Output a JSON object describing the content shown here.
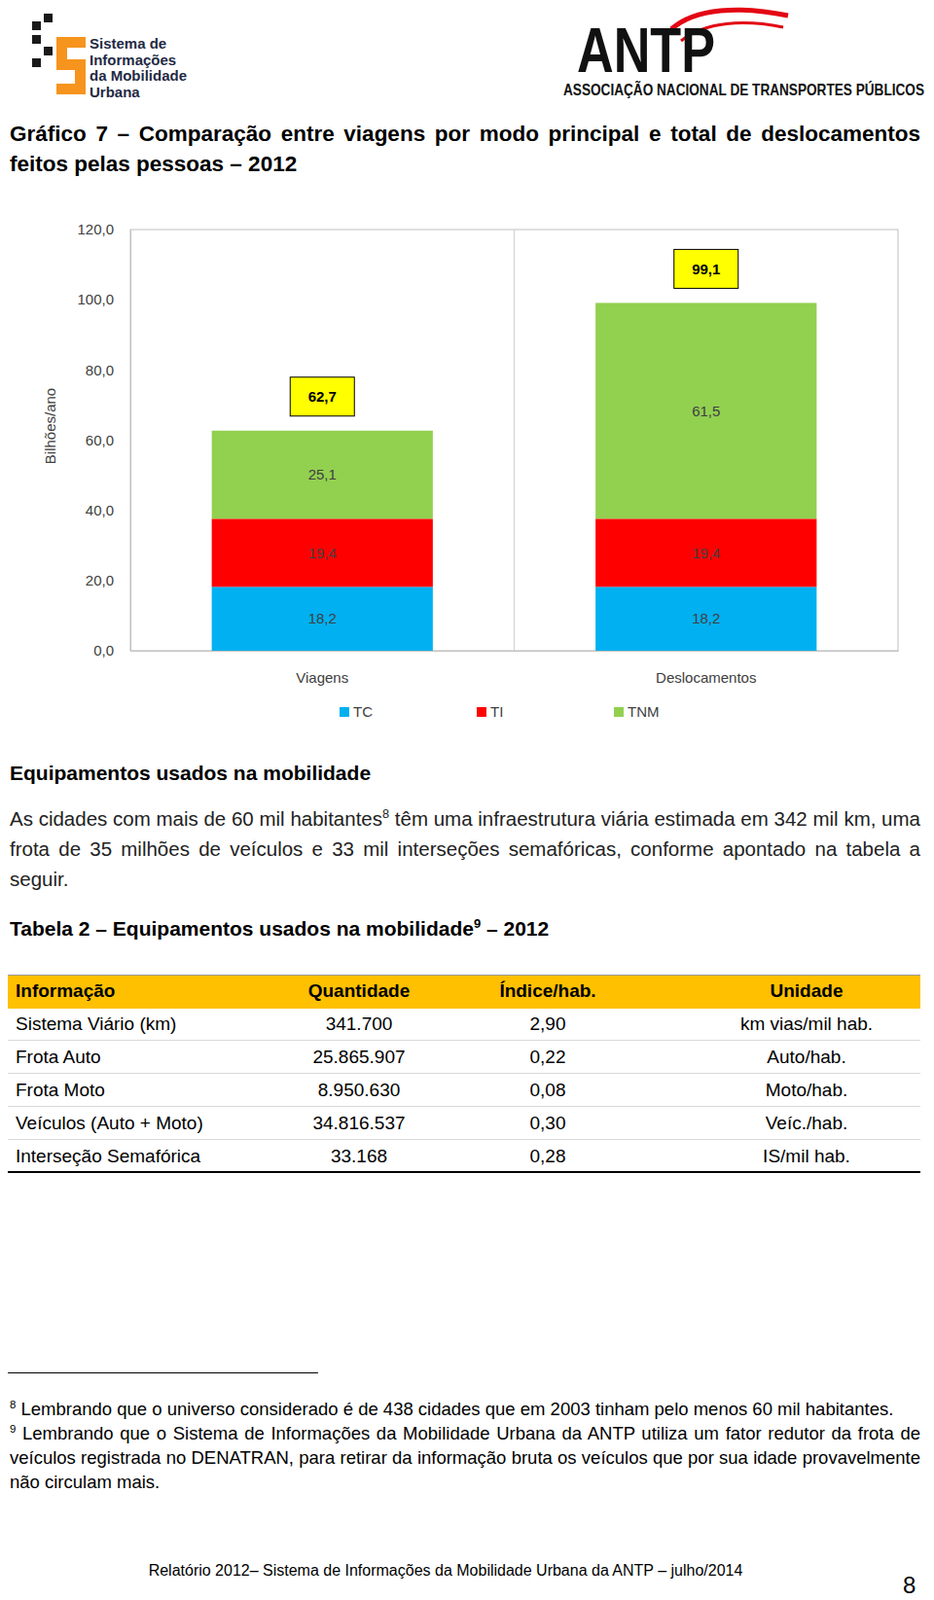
{
  "header": {
    "logo_left": [
      "Sistema de",
      "Informações",
      "da Mobilidade",
      "Urbana"
    ],
    "logo_right_title": "ANTP",
    "logo_right_subtitle": "ASSOCIAÇÃO NACIONAL DE TRANSPORTES PÚBLICOS"
  },
  "chart_data": {
    "type": "bar",
    "title": "Gráfico 7 – Comparação entre viagens por modo principal e total de deslocamentos feitos pelas pessoas – 2012",
    "stacked": true,
    "data_labels": true,
    "grid": false,
    "legend": "bottom",
    "y_label": "Bilhões/ano",
    "categories": [
      "Viagens",
      "Deslocamentos"
    ],
    "series": [
      {
        "name": "TC",
        "color": "#00B0F0",
        "values": [
          18.2,
          18.2
        ],
        "value_labels": [
          "18,2",
          "18,2"
        ]
      },
      {
        "name": "TI",
        "color": "#FF0000",
        "values": [
          19.4,
          19.4
        ],
        "value_labels": [
          "19,4",
          "19,4"
        ]
      },
      {
        "name": "TNM",
        "color": "#92D050",
        "values": [
          25.1,
          61.5
        ],
        "value_labels": [
          "25,1",
          "61,5"
        ]
      }
    ],
    "totals": [
      62.7,
      99.1
    ],
    "total_labels": [
      "62,7",
      "99,1"
    ],
    "ylim": [
      0,
      120
    ],
    "yticks": [
      {
        "value": 0,
        "label": "0,0"
      },
      {
        "value": 20,
        "label": "20,0"
      },
      {
        "value": 40,
        "label": "40,0"
      },
      {
        "value": 60,
        "label": "60,0"
      },
      {
        "value": 80,
        "label": "80,0"
      },
      {
        "value": 100,
        "label": "100,0"
      },
      {
        "value": 120,
        "label": "120,0"
      }
    ]
  },
  "section": {
    "heading": "Equipamentos usados na mobilidade",
    "paragraph": {
      "text_before": "As cidades com mais de 60 mil habitantes",
      "footnote_ref": "8",
      "text_after": " têm uma infraestrutura viária estimada em 342 mil km, uma frota de 35 milhões de veículos e 33 mil interseções semafóricas, conforme apontado na tabela a seguir."
    }
  },
  "table": {
    "title": {
      "text": "Tabela 2 – Equipamentos usados na mobilidade",
      "footnote_ref": "9",
      "suffix": " – 2012"
    },
    "header": [
      "Informação",
      "Quantidade",
      "Índice/hab.",
      "Unidade"
    ],
    "rows": [
      [
        "Sistema Viário (km)",
        "341.700",
        "2,90",
        "km vias/mil hab."
      ],
      [
        "Frota Auto",
        "25.865.907",
        "0,22",
        "Auto/hab."
      ],
      [
        "Frota Moto",
        "8.950.630",
        "0,08",
        "Moto/hab."
      ],
      [
        "Veículos (Auto + Moto)",
        "34.816.537",
        "0,30",
        "Veíc./hab."
      ],
      [
        "Interseção Semafórica",
        "33.168",
        "0,28",
        "IS/mil hab."
      ]
    ]
  },
  "footnotes": [
    {
      "ref": "8",
      "text": "Lembrando que o universo considerado é de 438 cidades que em 2003 tinham pelo menos 60 mil habitantes."
    },
    {
      "ref": "9",
      "text": "Lembrando que o Sistema de Informações da Mobilidade Urbana da ANTP utiliza um fator redutor da frota de veículos registrada no DENATRAN, para retirar da informação bruta os veículos que por sua idade provavelmente não circulam mais."
    }
  ],
  "footer": {
    "text": "Relatório 2012– Sistema de Informações da Mobilidade Urbana da ANTP – julho/2014",
    "page": "8"
  }
}
